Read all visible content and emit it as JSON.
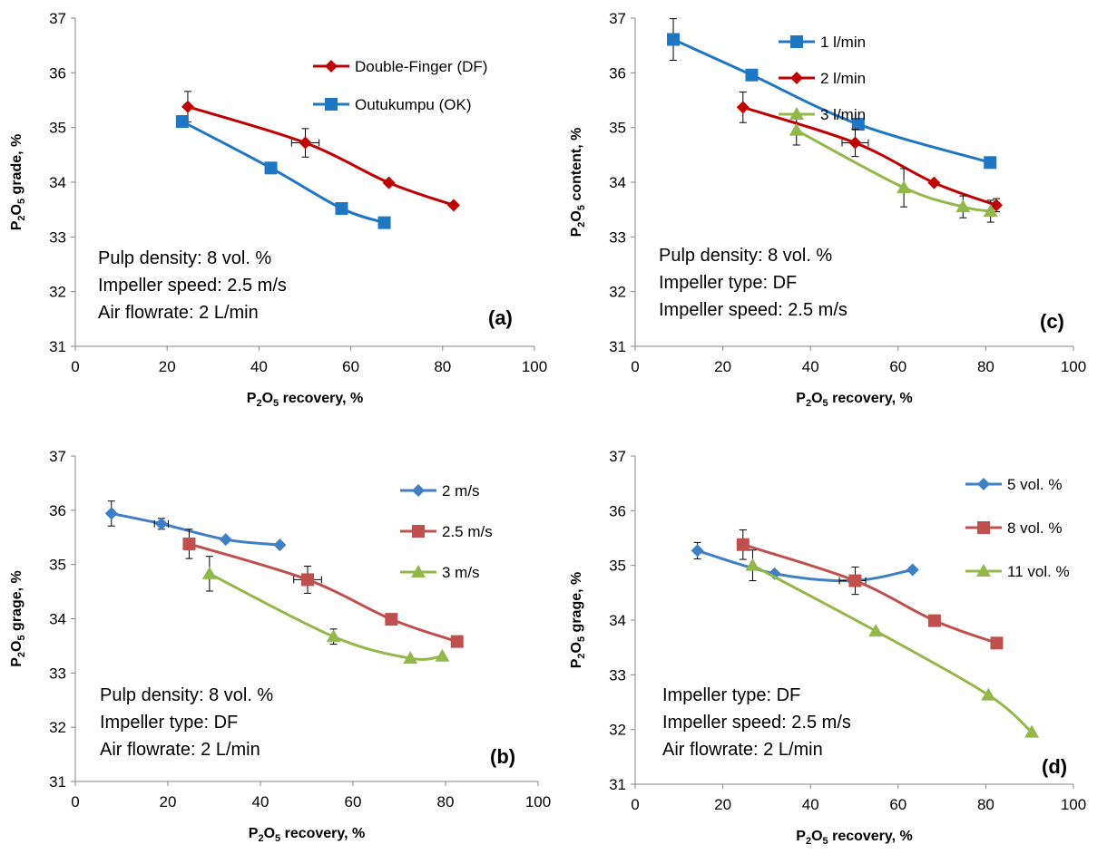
{
  "chart_data": [
    {
      "id": "a",
      "type": "line",
      "panel_label": "(a)",
      "xlabel": {
        "pre": "P",
        "sub1": "2",
        "mid": "O",
        "sub2": "5",
        "post": " recovery, %"
      },
      "ylabel": {
        "pre": "P",
        "sub1": "2",
        "mid": "O",
        "sub2": "5",
        "post": " grade, %"
      },
      "xlim": [
        0,
        100
      ],
      "ylim": [
        31,
        37
      ],
      "xticks": [
        "0",
        "20",
        "40",
        "60",
        "80",
        "100"
      ],
      "yticks": [
        "31",
        "32",
        "33",
        "34",
        "35",
        "36",
        "37"
      ],
      "notes": [
        "Pulp density: 8 vol. %",
        "Impeller speed: 2.5 m/s",
        "Air flowrate: 2 L/min"
      ],
      "series": [
        {
          "name": "Double-Finger (DF)",
          "color": "#C00000",
          "marker": "diamond",
          "points": [
            {
              "x": 24.5,
              "y": 35.38,
              "ey": 0.28
            },
            {
              "x": 50.1,
              "y": 34.72,
              "ey": 0.26,
              "ex": 3
            },
            {
              "x": 68.3,
              "y": 33.99
            },
            {
              "x": 82.4,
              "y": 33.58
            }
          ]
        },
        {
          "name": "Outukumpu (OK)",
          "color": "#1F77C4",
          "marker": "square",
          "points": [
            {
              "x": 23.3,
              "y": 35.11
            },
            {
              "x": 42.6,
              "y": 34.26
            },
            {
              "x": 58.0,
              "y": 33.52
            },
            {
              "x": 67.3,
              "y": 33.26
            }
          ]
        }
      ]
    },
    {
      "id": "c",
      "type": "line",
      "panel_label": "(c)",
      "xlabel": {
        "pre": "P",
        "sub1": "2",
        "mid": "O",
        "sub2": "5",
        "post": " recovery, %"
      },
      "ylabel": {
        "pre": "P",
        "sub1": "2",
        "mid": "O",
        "sub2": "5",
        "post": " content, %"
      },
      "xlim": [
        0,
        100
      ],
      "ylim": [
        31,
        37
      ],
      "xticks": [
        "0",
        "20",
        "40",
        "60",
        "80",
        "100"
      ],
      "yticks": [
        "31",
        "32",
        "33",
        "34",
        "35",
        "36",
        "37"
      ],
      "notes": [
        "Pulp density: 8 vol. %",
        "Impeller type: DF",
        "Impeller speed: 2.5 m/s"
      ],
      "series": [
        {
          "name": "1 l/min",
          "color": "#1F77C4",
          "marker": "square",
          "points": [
            {
              "x": 8.7,
              "y": 36.61,
              "ey": 0.38
            },
            {
              "x": 26.6,
              "y": 35.96
            },
            {
              "x": 50.9,
              "y": 35.06
            },
            {
              "x": 81.0,
              "y": 34.36
            }
          ]
        },
        {
          "name": "2 l/min",
          "color": "#C00000",
          "marker": "diamond",
          "points": [
            {
              "x": 24.6,
              "y": 35.37,
              "ey": 0.28
            },
            {
              "x": 50.2,
              "y": 34.72,
              "ey": 0.25,
              "ex": 3
            },
            {
              "x": 68.2,
              "y": 33.99
            },
            {
              "x": 82.4,
              "y": 33.58,
              "ey": 0.12
            }
          ]
        },
        {
          "name": "3 l/min",
          "color": "#92B84A",
          "marker": "triangle",
          "points": [
            {
              "x": 36.8,
              "y": 34.95,
              "ey": 0.27
            },
            {
              "x": 61.3,
              "y": 33.9,
              "ey": 0.35
            },
            {
              "x": 74.8,
              "y": 33.55,
              "ey": 0.2
            },
            {
              "x": 81.1,
              "y": 33.47,
              "ey": 0.2
            }
          ]
        }
      ]
    },
    {
      "id": "b",
      "type": "line",
      "panel_label": "(b)",
      "xlabel": {
        "pre": "P",
        "sub1": "2",
        "mid": "O",
        "sub2": "5",
        "post": " recovery, %"
      },
      "ylabel": {
        "pre": "P",
        "sub1": "2",
        "mid": "O",
        "sub2": "5",
        "post": " grage, %"
      },
      "xlim": [
        0,
        100
      ],
      "ylim": [
        31,
        37
      ],
      "xticks": [
        "0",
        "20",
        "40",
        "60",
        "80",
        "100"
      ],
      "yticks": [
        "31",
        "32",
        "33",
        "34",
        "35",
        "36",
        "37"
      ],
      "notes": [
        "Pulp density: 8 vol. %",
        "Impeller type: DF",
        "Air flowrate: 2 L/min"
      ],
      "series": [
        {
          "name": "2 m/s",
          "color": "#3F7FC5",
          "marker": "diamond",
          "points": [
            {
              "x": 7.8,
              "y": 35.94,
              "ey": 0.23
            },
            {
              "x": 18.6,
              "y": 35.75,
              "ey": 0.1,
              "ex": 1.5
            },
            {
              "x": 32.5,
              "y": 35.46
            },
            {
              "x": 44.2,
              "y": 35.36
            }
          ]
        },
        {
          "name": "2.5 m/s",
          "color": "#C0504D",
          "marker": "square",
          "points": [
            {
              "x": 24.6,
              "y": 35.38,
              "ey": 0.27
            },
            {
              "x": 50.2,
              "y": 34.72,
              "ey": 0.25,
              "ex": 3
            },
            {
              "x": 68.3,
              "y": 33.99
            },
            {
              "x": 82.5,
              "y": 33.58
            }
          ]
        },
        {
          "name": "3 m/s",
          "color": "#92B84A",
          "marker": "triangle",
          "points": [
            {
              "x": 29.0,
              "y": 34.83,
              "ey": 0.32
            },
            {
              "x": 55.8,
              "y": 33.67,
              "ey": 0.14
            },
            {
              "x": 72.4,
              "y": 33.27
            },
            {
              "x": 79.3,
              "y": 33.31
            }
          ]
        }
      ]
    },
    {
      "id": "d",
      "type": "line",
      "panel_label": "(d)",
      "xlabel": {
        "pre": "P",
        "sub1": "2",
        "mid": "O",
        "sub2": "5",
        "post": " recovery, %"
      },
      "ylabel": {
        "pre": "P",
        "sub1": "2",
        "mid": "O",
        "sub2": "5",
        "post": " grage, %"
      },
      "xlim": [
        0,
        100
      ],
      "ylim": [
        31,
        37
      ],
      "xticks": [
        "0",
        "20",
        "40",
        "60",
        "80",
        "100"
      ],
      "yticks": [
        "31",
        "32",
        "33",
        "34",
        "35",
        "36",
        "37"
      ],
      "notes": [
        "Impeller type: DF",
        "Impeller speed: 2.5 m/s",
        "Air flowrate: 2 L/min"
      ],
      "series": [
        {
          "name": "5 vol. %",
          "color": "#3F7FC5",
          "marker": "diamond",
          "points": [
            {
              "x": 14.2,
              "y": 35.27,
              "ey": 0.15
            },
            {
              "x": 31.8,
              "y": 34.85
            },
            {
              "x": 49.6,
              "y": 34.72,
              "ex": 3
            },
            {
              "x": 63.3,
              "y": 34.92
            }
          ]
        },
        {
          "name": "8 vol. %",
          "color": "#C0504D",
          "marker": "square",
          "points": [
            {
              "x": 24.6,
              "y": 35.38,
              "ey": 0.27
            },
            {
              "x": 50.2,
              "y": 34.72,
              "ey": 0.25
            },
            {
              "x": 68.3,
              "y": 33.99
            },
            {
              "x": 82.5,
              "y": 33.58
            }
          ]
        },
        {
          "name": "11 vol. %",
          "color": "#92B84A",
          "marker": "triangle",
          "points": [
            {
              "x": 26.8,
              "y": 35.0,
              "ey": 0.28
            },
            {
              "x": 54.9,
              "y": 33.8
            },
            {
              "x": 80.6,
              "y": 32.63
            },
            {
              "x": 90.5,
              "y": 31.95
            }
          ]
        }
      ]
    }
  ]
}
